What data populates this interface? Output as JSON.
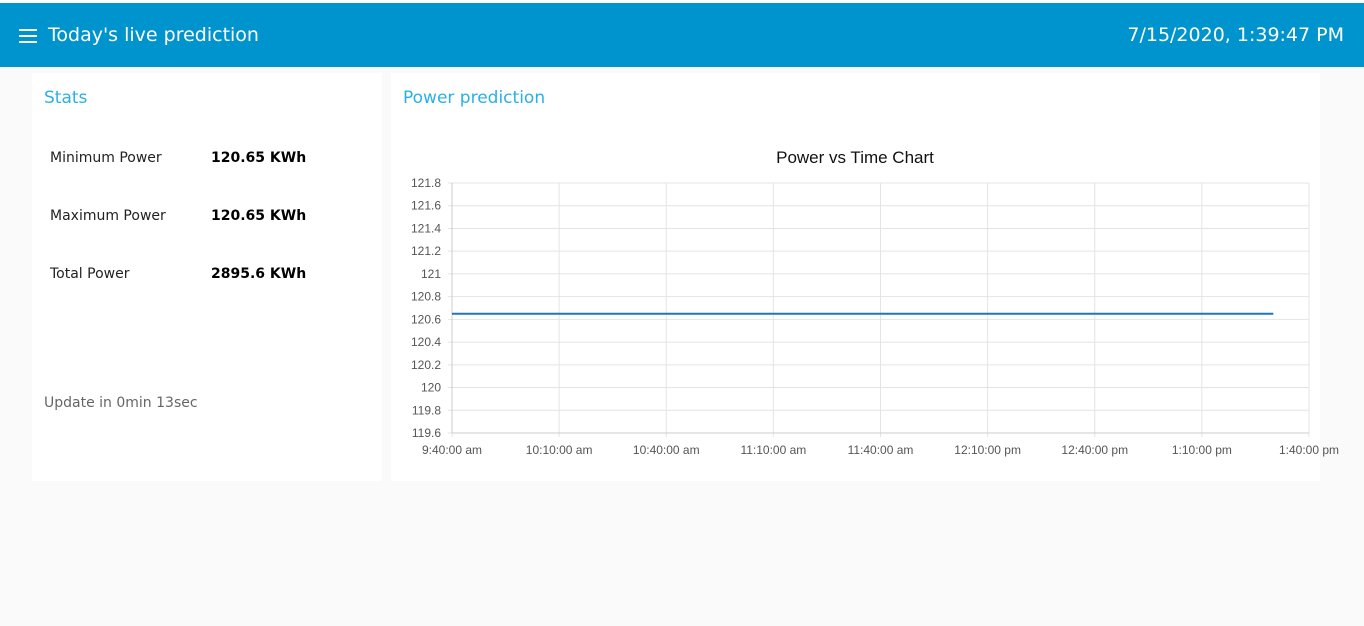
{
  "header": {
    "title": "Today's live prediction",
    "datetime": "7/15/2020, 1:39:47 PM",
    "menu_icon": "hamburger-menu-icon",
    "color": "#0094ce"
  },
  "stats": {
    "title": "Stats",
    "items": [
      {
        "label": "Minimum Power",
        "value": "120.65 KWh"
      },
      {
        "label": "Maximum Power",
        "value": "120.65 KWh"
      },
      {
        "label": "Total Power",
        "value": "2895.6 KWh"
      }
    ],
    "update_text": "Update in 0min 13sec"
  },
  "chart_panel": {
    "title": "Power prediction"
  },
  "chart_data": {
    "type": "line",
    "title": "Power vs Time Chart",
    "xlabel": "",
    "ylabel": "",
    "x_ticks": [
      "9:40:00 am",
      "10:10:00 am",
      "10:40:00 am",
      "11:10:00 am",
      "11:40:00 am",
      "12:10:00 pm",
      "12:40:00 pm",
      "1:10:00 pm",
      "1:40:00 pm"
    ],
    "y_ticks": [
      "121.8",
      "121.6",
      "121.4",
      "121.2",
      "121",
      "120.8",
      "120.6",
      "120.4",
      "120.2",
      "120",
      "119.8",
      "119.6"
    ],
    "ylim": [
      119.6,
      121.8
    ],
    "xlim": [
      "9:40:00 am",
      "1:40:00 pm"
    ],
    "grid": true,
    "series": [
      {
        "x": [
          "9:40:00 am",
          "1:30:00 pm"
        ],
        "values": [
          120.65,
          120.65
        ],
        "color": "#1f77b4"
      }
    ]
  }
}
